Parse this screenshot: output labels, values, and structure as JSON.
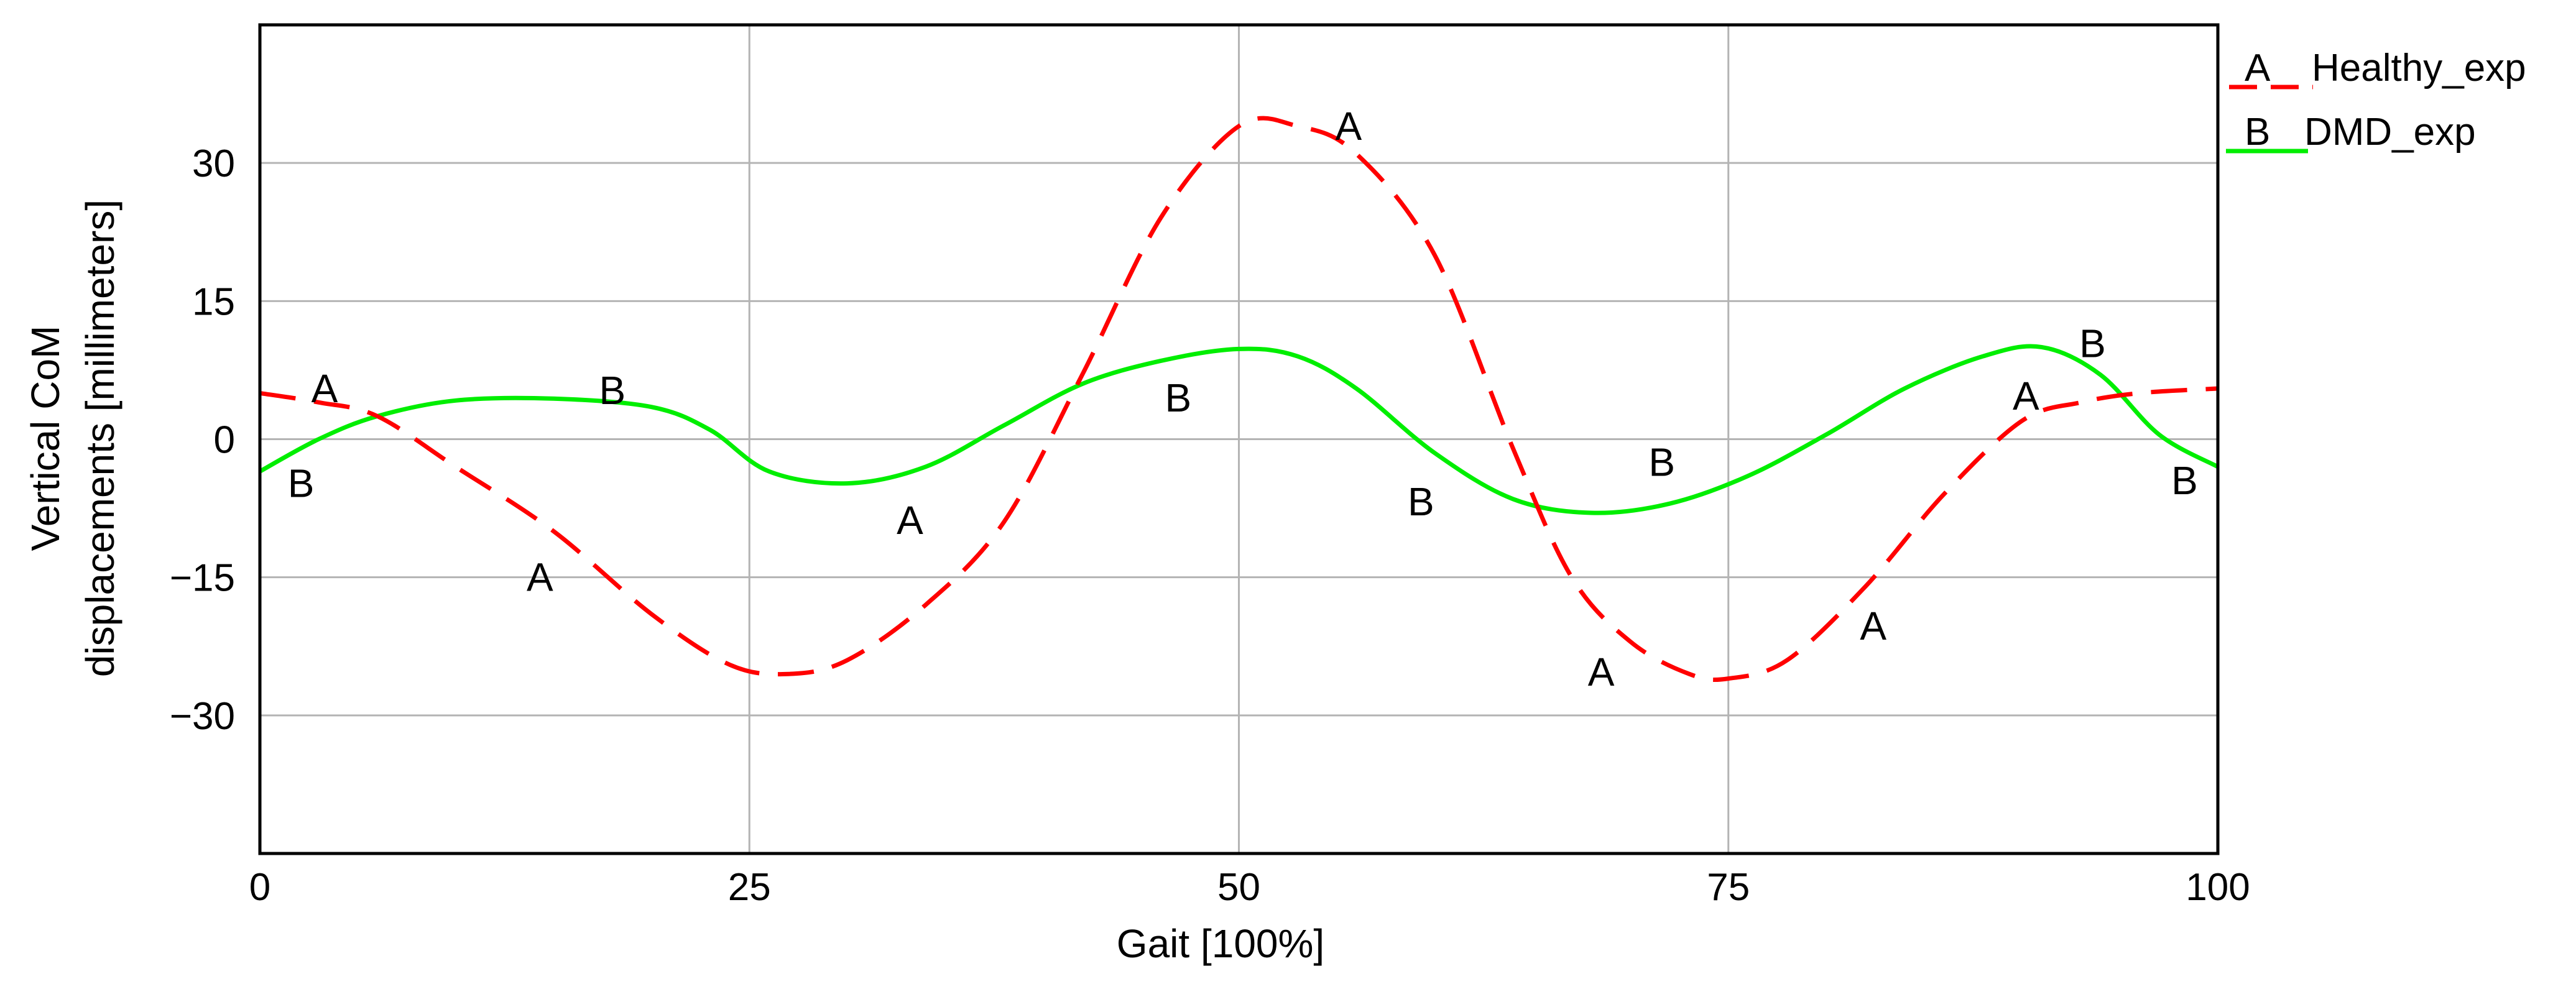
{
  "chart_data": {
    "type": "line",
    "xlabel": "Gait [100%]",
    "ylabel_lines": [
      "Vertical CoM",
      "displacements [millimeters]"
    ],
    "xlim": [
      0,
      100
    ],
    "ylim": [
      -45,
      45
    ],
    "xticks": [
      0,
      25,
      50,
      75,
      100
    ],
    "yticks": [
      -30,
      -15,
      0,
      15,
      30
    ],
    "grid": true,
    "legend_position": "right",
    "series": [
      {
        "name": "Healthy_exp",
        "marker": "A",
        "color": "#ff0000",
        "style": "dashed",
        "x": [
          0,
          3,
          6,
          10,
          15,
          20,
          24,
          27,
          30,
          34,
          38,
          42,
          46,
          50,
          53,
          56,
          60,
          64,
          67,
          70,
          73,
          75,
          78,
          82,
          86,
          90,
          93,
          96,
          100
        ],
        "y": [
          5,
          4,
          2.5,
          -3,
          -10,
          -19,
          -24.5,
          -25.5,
          -24,
          -18,
          -9,
          7,
          24,
          34,
          34,
          31,
          20,
          -1,
          -15,
          -22,
          -25.5,
          -26,
          -24,
          -16,
          -6,
          2,
          4,
          5,
          5.5
        ],
        "labels": [
          {
            "text": "A",
            "x": 3.3,
            "y": 5.5
          },
          {
            "text": "A",
            "x": 14.3,
            "y": -15
          },
          {
            "text": "A",
            "x": 33.2,
            "y": -8.8
          },
          {
            "text": "A",
            "x": 55.6,
            "y": 34
          },
          {
            "text": "A",
            "x": 68.5,
            "y": -25.3
          },
          {
            "text": "A",
            "x": 82.4,
            "y": -20.3
          },
          {
            "text": "A",
            "x": 90.2,
            "y": 4.7
          }
        ]
      },
      {
        "name": "DMD_exp",
        "marker": "B",
        "color": "#00ee00",
        "style": "solid",
        "x": [
          0,
          3,
          6,
          10,
          15,
          20,
          23,
          26,
          30,
          34,
          38,
          42,
          46,
          50,
          53,
          56,
          60,
          64,
          68,
          72,
          76,
          80,
          84,
          88,
          91,
          94,
          97,
          100
        ],
        "y": [
          -3.5,
          0,
          2.5,
          4.2,
          4.4,
          3.5,
          1,
          -3.5,
          -4.8,
          -3,
          1.5,
          6,
          8.5,
          9.8,
          9,
          5.5,
          -1.5,
          -6.5,
          -8,
          -7,
          -4,
          0.5,
          5.5,
          9,
          10,
          7,
          0.5,
          -3
        ],
        "labels": [
          {
            "text": "B",
            "x": 2.1,
            "y": -4.8
          },
          {
            "text": "B",
            "x": 18,
            "y": 5.3
          },
          {
            "text": "B",
            "x": 46.9,
            "y": 4.5
          },
          {
            "text": "B",
            "x": 59.3,
            "y": -6.8
          },
          {
            "text": "B",
            "x": 71.6,
            "y": -2.5
          },
          {
            "text": "B",
            "x": 93.6,
            "y": 10.4
          },
          {
            "text": "B",
            "x": 98.3,
            "y": -4.5
          }
        ]
      }
    ],
    "legend": [
      {
        "marker": "A",
        "label": "Healthy_exp"
      },
      {
        "marker": "B",
        "label": "DMD_exp"
      }
    ]
  }
}
